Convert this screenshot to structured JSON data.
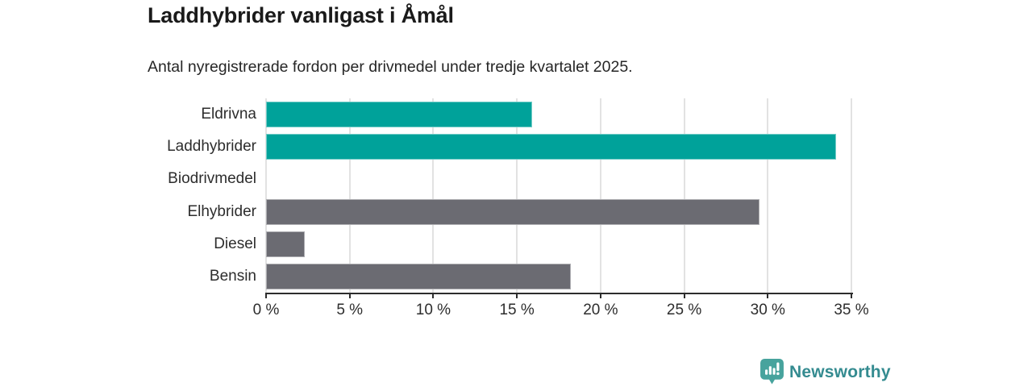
{
  "header": {
    "title": "Laddhybrider vanligast i Åmål",
    "subtitle": "Antal nyregistrerade fordon per drivmedel under tredje kvartalet 2025."
  },
  "chart_data": {
    "type": "bar",
    "orientation": "horizontal",
    "title": "Laddhybrider vanligast i Åmål",
    "subtitle": "Antal nyregistrerade fordon per drivmedel under tredje kvartalet 2025.",
    "categories": [
      "Eldrivna",
      "Laddhybrider",
      "Biodrivmedel",
      "Elhybrider",
      "Diesel",
      "Bensin"
    ],
    "values": [
      15.9,
      34.1,
      0,
      29.5,
      2.3,
      18.2
    ],
    "unit": "%",
    "bar_colors": [
      "teal",
      "teal",
      "teal",
      "gray",
      "gray",
      "gray"
    ],
    "palette": {
      "teal": "#00a29a",
      "gray": "#6b6b72"
    },
    "xlim": [
      0,
      35
    ],
    "x_tick_values": [
      0,
      5,
      10,
      15,
      20,
      25,
      30,
      35
    ],
    "x_tick_labels": [
      "0 %",
      "5 %",
      "10 %",
      "15 %",
      "20 %",
      "25 %",
      "30 %",
      "35 %"
    ],
    "grid": "vertical-only",
    "legend": "none",
    "grid_color": "#e2e2e2",
    "axis_color": "#2d2d2d"
  },
  "footer": {
    "brand": "Newsworthy",
    "brand_color": "#348b90",
    "icon": "newsworthy-speech-bubble-chart-icon",
    "icon_color": "#47a39d"
  }
}
